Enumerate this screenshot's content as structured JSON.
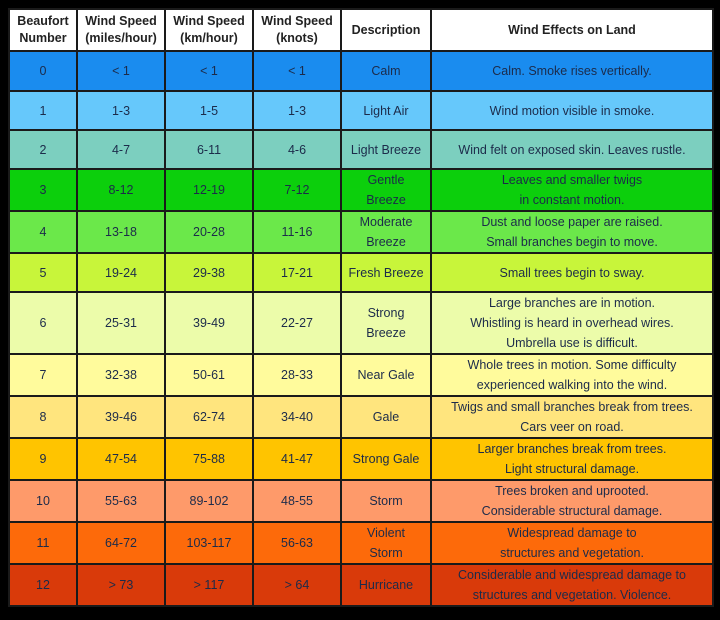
{
  "headers": [
    [
      "Beaufort",
      "Number"
    ],
    [
      "Wind Speed",
      "(miles/hour)"
    ],
    [
      "Wind Speed",
      "(km/hour)"
    ],
    [
      "Wind Speed",
      "(knots)"
    ],
    [
      "Description"
    ],
    [
      "Wind Effects on Land"
    ]
  ],
  "rows": [
    {
      "number": "0",
      "mph": "< 1",
      "kmh": "< 1",
      "knots": "< 1",
      "description": [
        "Calm"
      ],
      "effects": [
        "Calm. Smoke rises vertically."
      ],
      "color": "#1a8cef"
    },
    {
      "number": "1",
      "mph": "1-3",
      "kmh": "1-5",
      "knots": "1-3",
      "description": [
        "Light Air"
      ],
      "effects": [
        "Wind motion visible in smoke."
      ],
      "color": "#66c8fb"
    },
    {
      "number": "2",
      "mph": "4-7",
      "kmh": "6-11",
      "knots": "4-6",
      "description": [
        "Light Breeze"
      ],
      "effects": [
        "Wind felt on exposed skin. Leaves rustle."
      ],
      "color": "#7ccfbf"
    },
    {
      "number": "3",
      "mph": "8-12",
      "kmh": "12-19",
      "knots": "7-12",
      "description": [
        "Gentle",
        "Breeze"
      ],
      "effects": [
        "Leaves and smaller twigs",
        "in constant motion."
      ],
      "color": "#0ccf0c"
    },
    {
      "number": "4",
      "mph": "13-18",
      "kmh": "20-28",
      "knots": "11-16",
      "description": [
        "Moderate",
        "Breeze"
      ],
      "effects": [
        "Dust and loose paper are raised.",
        "Small branches begin to move."
      ],
      "color": "#6be84a"
    },
    {
      "number": "5",
      "mph": "19-24",
      "kmh": "29-38",
      "knots": "17-21",
      "description": [
        "Fresh Breeze"
      ],
      "effects": [
        "Small trees begin to sway."
      ],
      "color": "#c8f53a"
    },
    {
      "number": "6",
      "mph": "25-31",
      "kmh": "39-49",
      "knots": "22-27",
      "description": [
        "Strong",
        "Breeze"
      ],
      "effects": [
        "Large branches are in motion.",
        "Whistling is heard in overhead wires.",
        "Umbrella use is difficult."
      ],
      "color": "#ecfcaa"
    },
    {
      "number": "7",
      "mph": "32-38",
      "kmh": "50-61",
      "knots": "28-33",
      "description": [
        "Near Gale"
      ],
      "effects": [
        "Whole trees in motion. Some difficulty",
        "experienced walking into the wind."
      ],
      "color": "#fffb9c"
    },
    {
      "number": "8",
      "mph": "39-46",
      "kmh": "62-74",
      "knots": "34-40",
      "description": [
        "Gale"
      ],
      "effects": [
        "Twigs and small branches break from trees.",
        "Cars veer on road."
      ],
      "color": "#ffe57e"
    },
    {
      "number": "9",
      "mph": "47-54",
      "kmh": "75-88",
      "knots": "41-47",
      "description": [
        "Strong Gale"
      ],
      "effects": [
        "Larger branches break from trees.",
        "Light structural damage."
      ],
      "color": "#ffc400"
    },
    {
      "number": "10",
      "mph": "55-63",
      "kmh": "89-102",
      "knots": "48-55",
      "description": [
        "Storm"
      ],
      "effects": [
        "Trees broken and uprooted.",
        "Considerable structural damage."
      ],
      "color": "#fe9a6a"
    },
    {
      "number": "11",
      "mph": "64-72",
      "kmh": "103-117",
      "knots": "56-63",
      "description": [
        "Violent",
        "Storm"
      ],
      "effects": [
        "Widespread damage to",
        "structures and vegetation."
      ],
      "color": "#fd6a0a"
    },
    {
      "number": "12",
      "mph": "> 73",
      "kmh": "> 117",
      "knots": "> 64",
      "description": [
        "Hurricane"
      ],
      "effects": [
        "Considerable and widespread damage to",
        "structures and vegetation. Violence."
      ],
      "color": "#d93a0a"
    }
  ]
}
